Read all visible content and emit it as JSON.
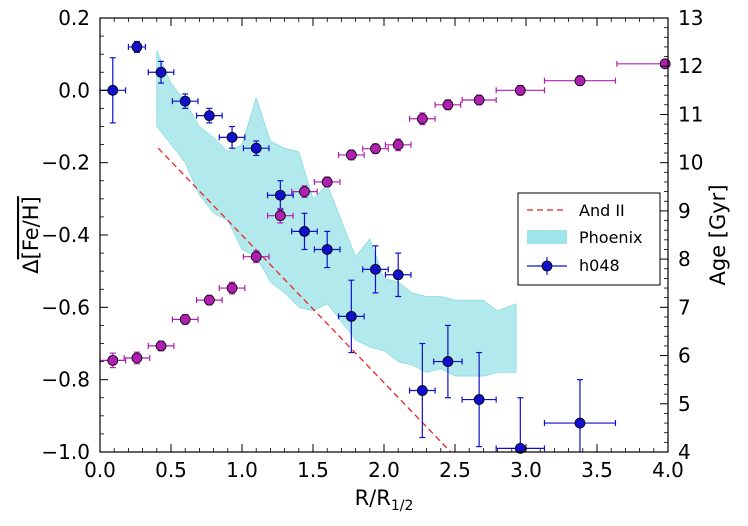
{
  "chart_data": {
    "type": "scatter",
    "xlabel": "R/R",
    "xlabel_sub": "1/2",
    "ylabel_left_prefix": "Δ",
    "ylabel_left_inner": "[Fe/H]",
    "ylabel_right": "Age [Gyr]",
    "xlim": [
      0.0,
      4.0
    ],
    "ylim_left": [
      -1.0,
      0.2
    ],
    "ylim_right": [
      4,
      13
    ],
    "x_ticks": [
      "0.0",
      "0.5",
      "1.0",
      "1.5",
      "2.0",
      "2.5",
      "3.0",
      "3.5",
      "4.0"
    ],
    "y_left_ticks": [
      "0.2",
      "0.0",
      "−0.2",
      "−0.4",
      "−0.6",
      "−0.8",
      "−1.0"
    ],
    "y_right_ticks": [
      "4",
      "5",
      "6",
      "7",
      "8",
      "9",
      "10",
      "11",
      "12",
      "13"
    ],
    "colors": {
      "h048": "#1010cc",
      "age": "#b020b0",
      "and2": "#ee2222",
      "phoenix": "#7fdbe0"
    },
    "legend": {
      "position": "center-right",
      "entries": [
        "And II",
        "Phoenix",
        "h048"
      ]
    },
    "series": [
      {
        "name": "h048",
        "axis": "left",
        "points": [
          {
            "x": 0.09,
            "y": 0.0,
            "xerr": 0.09,
            "yerr": 0.09
          },
          {
            "x": 0.26,
            "y": 0.12,
            "xerr": 0.06,
            "yerr": 0.015
          },
          {
            "x": 0.43,
            "y": 0.05,
            "xerr": 0.09,
            "yerr": 0.03
          },
          {
            "x": 0.6,
            "y": -0.03,
            "xerr": 0.09,
            "yerr": 0.02
          },
          {
            "x": 0.77,
            "y": -0.07,
            "xerr": 0.09,
            "yerr": 0.02
          },
          {
            "x": 0.93,
            "y": -0.13,
            "xerr": 0.09,
            "yerr": 0.03
          },
          {
            "x": 1.1,
            "y": -0.16,
            "xerr": 0.09,
            "yerr": 0.02
          },
          {
            "x": 1.27,
            "y": -0.29,
            "xerr": 0.09,
            "yerr": 0.04
          },
          {
            "x": 1.44,
            "y": -0.39,
            "xerr": 0.09,
            "yerr": 0.05
          },
          {
            "x": 1.6,
            "y": -0.44,
            "xerr": 0.09,
            "yerr": 0.05
          },
          {
            "x": 1.77,
            "y": -0.625,
            "xerr": 0.09,
            "yerr": 0.1
          },
          {
            "x": 1.94,
            "y": -0.495,
            "xerr": 0.09,
            "yerr": 0.065
          },
          {
            "x": 2.1,
            "y": -0.51,
            "xerr": 0.09,
            "yerr": 0.06
          },
          {
            "x": 2.27,
            "y": -0.83,
            "xerr": 0.09,
            "yerr": 0.13
          },
          {
            "x": 2.45,
            "y": -0.75,
            "xerr": 0.1,
            "yerr": 0.1
          },
          {
            "x": 2.67,
            "y": -0.855,
            "xerr": 0.12,
            "yerr": 0.13
          },
          {
            "x": 2.96,
            "y": -0.99,
            "xerr": 0.17,
            "yerr": 0.14
          },
          {
            "x": 3.38,
            "y": -0.92,
            "xerr": 0.25,
            "yerr": 0.12
          }
        ]
      },
      {
        "name": "Age",
        "axis": "right",
        "points": [
          {
            "x": 0.09,
            "age": 5.9,
            "xerr": 0.09,
            "yerr": 0.15
          },
          {
            "x": 0.26,
            "age": 5.95,
            "xerr": 0.09,
            "yerr": 0.12
          },
          {
            "x": 0.43,
            "age": 6.2,
            "xerr": 0.09,
            "yerr": 0.1
          },
          {
            "x": 0.6,
            "age": 6.75,
            "xerr": 0.09,
            "yerr": 0.1
          },
          {
            "x": 0.77,
            "age": 7.15,
            "xerr": 0.09,
            "yerr": 0.1
          },
          {
            "x": 0.93,
            "age": 7.4,
            "xerr": 0.09,
            "yerr": 0.12
          },
          {
            "x": 1.1,
            "age": 8.05,
            "xerr": 0.09,
            "yerr": 0.12
          },
          {
            "x": 1.27,
            "age": 8.9,
            "xerr": 0.09,
            "yerr": 0.15
          },
          {
            "x": 1.44,
            "age": 9.4,
            "xerr": 0.09,
            "yerr": 0.12
          },
          {
            "x": 1.6,
            "age": 9.6,
            "xerr": 0.09,
            "yerr": 0.1
          },
          {
            "x": 1.77,
            "age": 10.16,
            "xerr": 0.09,
            "yerr": 0.1
          },
          {
            "x": 1.94,
            "age": 10.29,
            "xerr": 0.09,
            "yerr": 0.1
          },
          {
            "x": 2.1,
            "age": 10.37,
            "xerr": 0.09,
            "yerr": 0.12
          },
          {
            "x": 2.27,
            "age": 10.91,
            "xerr": 0.09,
            "yerr": 0.12
          },
          {
            "x": 2.45,
            "age": 11.2,
            "xerr": 0.09,
            "yerr": 0.1
          },
          {
            "x": 2.67,
            "age": 11.3,
            "xerr": 0.12,
            "yerr": 0.1
          },
          {
            "x": 2.96,
            "age": 11.5,
            "xerr": 0.17,
            "yerr": 0.1
          },
          {
            "x": 3.38,
            "age": 11.7,
            "xerr": 0.25,
            "yerr": 0.1
          },
          {
            "x": 3.98,
            "age": 12.05,
            "xerr": 0.34,
            "yerr": 0.05
          }
        ]
      },
      {
        "name": "And II",
        "axis": "left",
        "style": "dashed",
        "x": [
          0.41,
          2.47
        ],
        "y": [
          -0.16,
          -1.0
        ]
      },
      {
        "name": "Phoenix",
        "axis": "left",
        "style": "band",
        "x": [
          0.4,
          0.5,
          0.6,
          0.7,
          0.8,
          0.9,
          1.0,
          1.1,
          1.2,
          1.3,
          1.4,
          1.5,
          1.6,
          1.7,
          1.8,
          1.9,
          2.0,
          2.1,
          2.2,
          2.3,
          2.4,
          2.5,
          2.6,
          2.7,
          2.8,
          2.93
        ],
        "upper": [
          0.11,
          0.02,
          -0.03,
          -0.1,
          -0.13,
          -0.17,
          -0.15,
          -0.02,
          -0.14,
          -0.16,
          -0.17,
          -0.3,
          -0.26,
          -0.36,
          -0.46,
          -0.41,
          -0.52,
          -0.53,
          -0.56,
          -0.57,
          -0.57,
          -0.58,
          -0.58,
          -0.58,
          -0.61,
          -0.59
        ],
        "lower": [
          -0.1,
          -0.15,
          -0.2,
          -0.29,
          -0.34,
          -0.36,
          -0.44,
          -0.46,
          -0.53,
          -0.56,
          -0.6,
          -0.61,
          -0.59,
          -0.64,
          -0.69,
          -0.71,
          -0.72,
          -0.75,
          -0.76,
          -0.78,
          -0.77,
          -0.79,
          -0.79,
          -0.79,
          -0.78,
          -0.78
        ]
      }
    ]
  }
}
